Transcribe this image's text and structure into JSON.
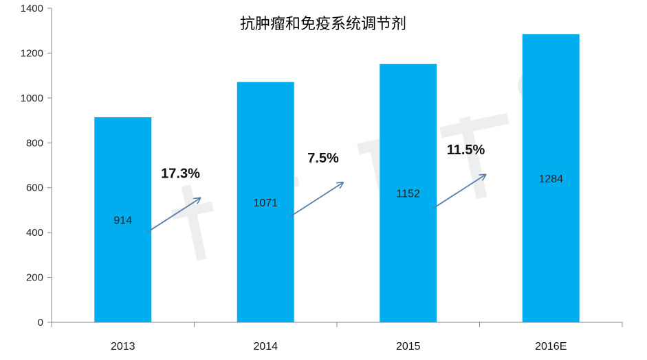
{
  "chart_data": {
    "type": "bar",
    "title": "抗肿瘤和免疫系统调节剂",
    "categories": [
      "2013",
      "2014",
      "2015",
      "2016E"
    ],
    "values": [
      914,
      1071,
      1152,
      1284
    ],
    "ylim": [
      0,
      1400
    ],
    "yticks": [
      0,
      200,
      400,
      600,
      800,
      1000,
      1200,
      1400
    ],
    "bar_color": "#00AEEF",
    "grid": false,
    "growth_annotations": [
      {
        "between": [
          "2013",
          "2014"
        ],
        "label": "17.3%"
      },
      {
        "between": [
          "2014",
          "2015"
        ],
        "label": "7.5%"
      },
      {
        "between": [
          "2015",
          "2016E"
        ],
        "label": "11.5%"
      }
    ]
  }
}
